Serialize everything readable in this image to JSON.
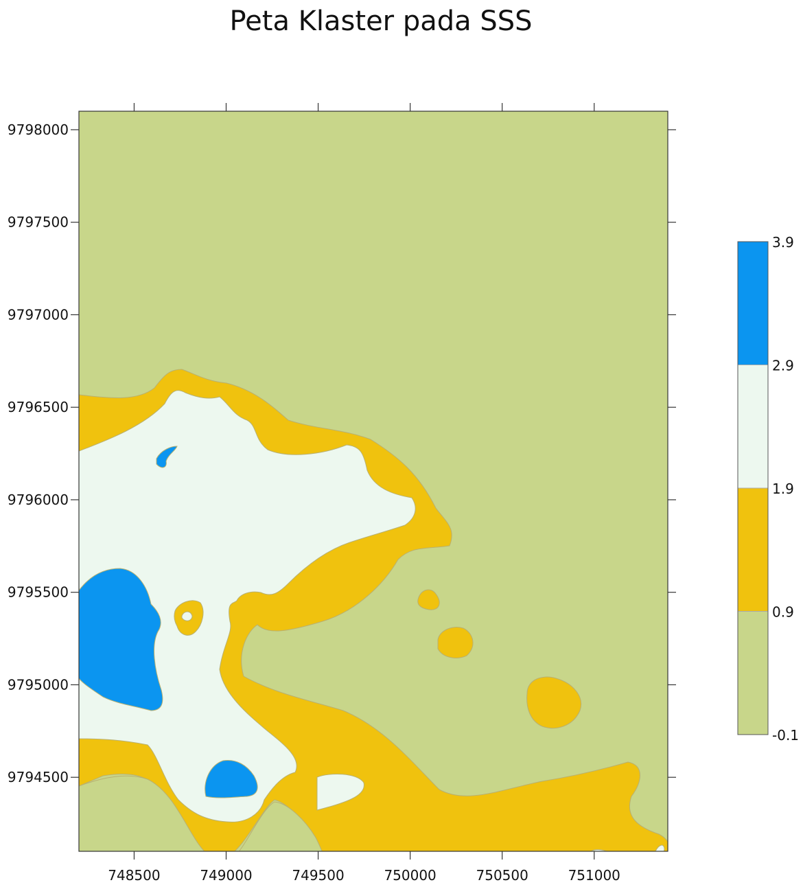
{
  "chart_data": {
    "type": "heatmap",
    "title": "Peta Klaster pada SSS",
    "xlabel": "",
    "ylabel": "",
    "xlim": [
      748200,
      751400
    ],
    "ylim": [
      9794100,
      9798100
    ],
    "x_ticks": [
      "748500",
      "749000",
      "749500",
      "750000",
      "750500",
      "751000"
    ],
    "y_ticks": [
      "9794500",
      "9795000",
      "9795500",
      "9796000",
      "9796500",
      "9797000",
      "9797500",
      "9798000"
    ],
    "grid": false,
    "legend": "right",
    "colorbar": {
      "levels": [
        {
          "label": "-0.1",
          "color": "#c8d68a"
        },
        {
          "label": "0.9",
          "color": "#f0c20e"
        },
        {
          "label": "1.9",
          "color": "#edf8ef"
        },
        {
          "label": "2.9",
          "color": "#0b95f0"
        },
        {
          "label": "3.9",
          "color": null
        }
      ]
    },
    "zone_colors": {
      "low": "#c8d68a",
      "mid": "#f0c20e",
      "high": "#edf8ef",
      "top": "#0b95f0"
    }
  }
}
